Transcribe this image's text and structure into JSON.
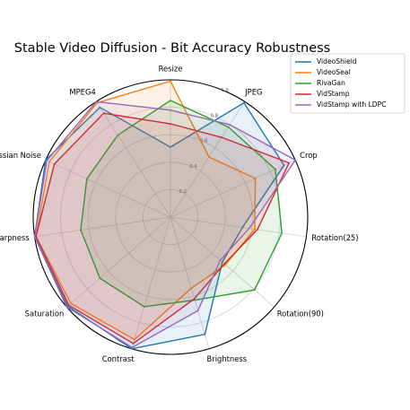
{
  "chart_data": {
    "type": "radar",
    "title": "Stable Video Diffusion - Bit Accuracy Robustness",
    "categories": [
      "Resize",
      "JPEG",
      "Crop",
      "Rotation(25)",
      "Rotation(90)",
      "Brightness",
      "Contrast",
      "Saturation",
      "Sharpness",
      "Gaussian Noise",
      "MPEG4"
    ],
    "radial_ticks": [
      "0.2",
      "0.4",
      "0.6",
      "0.8",
      "1.0"
    ],
    "rlim": [
      0,
      1.0
    ],
    "grid": true,
    "legend_position": "top-right",
    "series": [
      {
        "name": "VideoShield",
        "color": "#1f77b4",
        "values": [
          0.51,
          0.99,
          0.91,
          0.53,
          0.5,
          0.89,
          1.0,
          0.99,
          1.0,
          1.0,
          0.95
        ]
      },
      {
        "name": "VideoSeal",
        "color": "#ff7f0e",
        "values": [
          0.99,
          0.52,
          0.68,
          0.62,
          0.53,
          0.54,
          0.93,
          0.96,
          0.99,
          0.97,
          0.99
        ]
      },
      {
        "name": "RivaGan",
        "color": "#2ca02c",
        "values": [
          0.85,
          0.78,
          0.84,
          0.82,
          0.81,
          0.63,
          0.68,
          0.68,
          0.66,
          0.67,
          0.71
        ]
      },
      {
        "name": "VidStamp",
        "color": "#d62728",
        "values": [
          0.68,
          0.69,
          0.95,
          0.64,
          0.52,
          0.62,
          0.96,
          0.98,
          0.99,
          0.93,
          0.9
        ]
      },
      {
        "name": "VidStamp with LDPC",
        "color": "#9467bd",
        "values": [
          0.78,
          0.8,
          1.0,
          0.58,
          0.48,
          0.71,
          0.99,
          1.0,
          1.0,
          0.99,
          1.0
        ]
      }
    ]
  }
}
